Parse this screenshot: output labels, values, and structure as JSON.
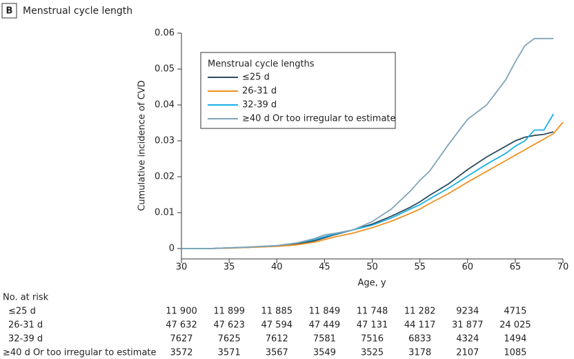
{
  "chart_data": {
    "type": "line",
    "panel": "B",
    "title": "Menstrual cycle length",
    "x_label": "Age, y",
    "y_label": "Cumulative incidence of CVD",
    "legend_title": "Menstrual cycle lengths",
    "x": [
      30,
      33,
      35,
      37,
      40,
      42,
      44,
      45,
      46,
      48,
      50,
      52,
      54,
      55,
      56,
      58,
      60,
      62,
      64,
      65,
      66,
      67,
      68,
      69,
      70
    ],
    "series": [
      {
        "name": "≤25 d",
        "color": "#2b4a5c",
        "values": [
          0,
          0,
          0.0002,
          0.0003,
          0.0007,
          0.0012,
          0.0022,
          0.003,
          0.0038,
          0.0052,
          0.0068,
          0.009,
          0.0115,
          0.013,
          0.0148,
          0.018,
          0.022,
          0.0255,
          0.0285,
          0.03,
          0.031,
          0.0315,
          0.0318,
          0.0325,
          null
        ]
      },
      {
        "name": "26-31 d",
        "color": "#f0901e",
        "values": [
          0,
          0,
          0.0001,
          0.0003,
          0.0006,
          0.001,
          0.0018,
          0.0025,
          0.0032,
          0.0043,
          0.0058,
          0.0076,
          0.0098,
          0.011,
          0.0125,
          0.0153,
          0.0185,
          0.0215,
          0.0245,
          0.026,
          0.0275,
          0.029,
          0.0305,
          0.032,
          0.0352
        ]
      },
      {
        "name": "32-39 d",
        "color": "#1aaee6",
        "values": [
          0,
          0,
          0.0002,
          0.0004,
          0.0008,
          0.0015,
          0.0025,
          0.0033,
          0.004,
          0.0052,
          0.0065,
          0.0085,
          0.011,
          0.0122,
          0.0138,
          0.0168,
          0.0202,
          0.0235,
          0.0265,
          0.0285,
          0.03,
          0.033,
          0.033,
          0.0375,
          null
        ]
      },
      {
        "name": "≥40 d Or too irregular to estimate",
        "color": "#7fa3b8",
        "values": [
          0,
          0,
          0.0002,
          0.0004,
          0.0008,
          0.0015,
          0.0028,
          0.0038,
          0.0042,
          0.0052,
          0.0075,
          0.011,
          0.016,
          0.019,
          0.0215,
          0.029,
          0.036,
          0.04,
          0.047,
          0.052,
          0.0565,
          0.0585,
          0.0585,
          0.0585,
          null
        ]
      }
    ],
    "xlim": [
      30,
      70
    ],
    "xticks": [
      30,
      35,
      40,
      45,
      50,
      55,
      60,
      65,
      70
    ],
    "ylim": [
      0,
      0.06
    ],
    "yticks": [
      0,
      0.01,
      0.02,
      0.03,
      0.04,
      0.05,
      0.06
    ]
  },
  "risk_table": {
    "title": "No. at risk",
    "rows": [
      {
        "label": "≤25 d",
        "values": [
          "11 900",
          "11 899",
          "11 885",
          "11 849",
          "11 748",
          "11 282",
          "9234",
          "4715"
        ]
      },
      {
        "label": "26-31 d",
        "values": [
          "47 632",
          "47 623",
          "47 594",
          "47 449",
          "47 131",
          "44 117",
          "31 877",
          "24 025"
        ]
      },
      {
        "label": "32-39 d",
        "values": [
          "7627",
          "7625",
          "7612",
          "7581",
          "7516",
          "6833",
          "4324",
          "1494"
        ]
      },
      {
        "label": "≥40 d Or too irregular to estimate",
        "values": [
          "3572",
          "3571",
          "3567",
          "3549",
          "3525",
          "3178",
          "2107",
          "1085"
        ]
      }
    ]
  }
}
